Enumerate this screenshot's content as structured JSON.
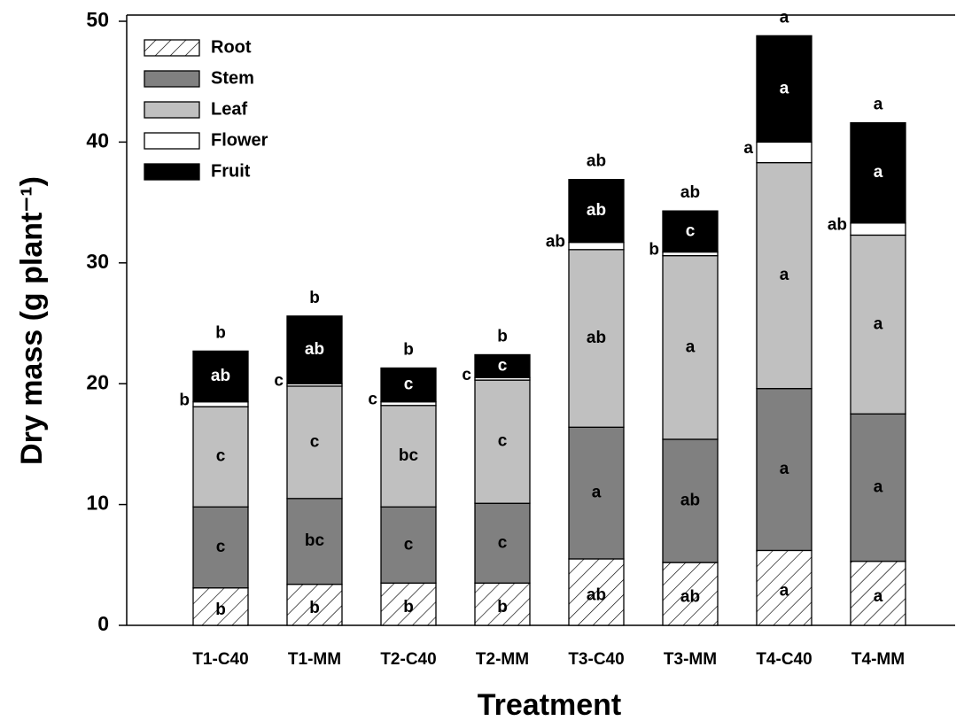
{
  "chart_data": {
    "type": "stacked-bar",
    "x_label": "Treatment",
    "y_label": "Dry mass (g plant⁻¹)",
    "categories": [
      "T1-C40",
      "T1-MM",
      "T2-C40",
      "T2-MM",
      "T3-C40",
      "T3-MM",
      "T4-C40",
      "T4-MM"
    ],
    "series": [
      {
        "name": "Root",
        "color": "#ffffff",
        "hatch": true,
        "values": [
          3.1,
          3.4,
          3.5,
          3.5,
          5.5,
          5.2,
          6.2,
          5.3
        ],
        "letters": [
          "b",
          "b",
          "b",
          "b",
          "ab",
          "ab",
          "a",
          "a"
        ]
      },
      {
        "name": "Stem",
        "color": "#808080",
        "values": [
          6.7,
          7.1,
          6.3,
          6.6,
          10.9,
          10.2,
          13.4,
          12.2
        ],
        "letters": [
          "c",
          "bc",
          "c",
          "c",
          "a",
          "ab",
          "a",
          "a"
        ]
      },
      {
        "name": "Leaf",
        "color": "#c0c0c0",
        "values": [
          8.3,
          9.3,
          8.4,
          10.2,
          14.7,
          15.2,
          18.7,
          14.8
        ],
        "letters": [
          "c",
          "c",
          "bc",
          "c",
          "ab",
          "a",
          "a",
          "a"
        ]
      },
      {
        "name": "Flower",
        "color": "#ffffff",
        "letters_outside": true,
        "values": [
          0.4,
          0.2,
          0.3,
          0.2,
          0.6,
          0.3,
          1.7,
          1.0
        ],
        "letters": [
          "b",
          "c",
          "c",
          "c",
          "ab",
          "b",
          "a",
          "ab"
        ]
      },
      {
        "name": "Fruit",
        "color": "#000000",
        "values": [
          4.2,
          5.6,
          2.8,
          1.9,
          5.2,
          3.4,
          8.8,
          8.3
        ],
        "letters": [
          "ab",
          "ab",
          "c",
          "c",
          "ab",
          "c",
          "a",
          "a"
        ]
      }
    ],
    "total_letters": [
      "b",
      "b",
      "b",
      "b",
      "ab",
      "ab",
      "a",
      "a"
    ],
    "ylim": [
      0,
      50
    ],
    "yticks": [
      0,
      10,
      20,
      30,
      40,
      50
    ],
    "legend": "upper-left"
  }
}
